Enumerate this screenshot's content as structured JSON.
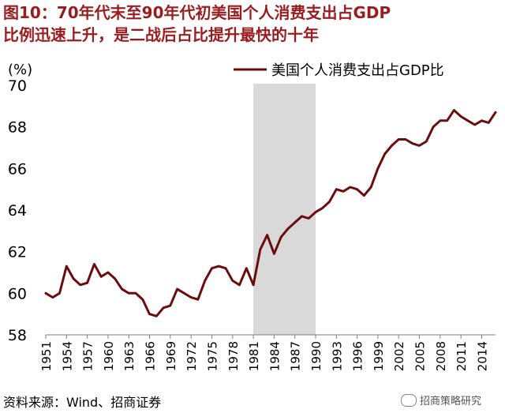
{
  "header": {
    "title_line1": "图10：70年代末至90年代初美国个人消费支出占GDP",
    "title_line2": "比例迅速上升，是二战后占比提升最快的十年"
  },
  "source": "资料来源：Wind、招商证券",
  "watermark": "招商策略研究",
  "colors": {
    "line": "#6b0d0d",
    "shade": "#d9d9d9",
    "title": "#9b1c1f"
  },
  "chart_data": {
    "type": "line",
    "title": "",
    "ylabel": "(%)",
    "xlabel": "",
    "ylim": [
      58,
      70
    ],
    "yticks": [
      58,
      60,
      62,
      64,
      66,
      68,
      70
    ],
    "xlim": [
      1951,
      2016
    ],
    "xticks": [
      1951,
      1954,
      1957,
      1960,
      1963,
      1966,
      1969,
      1972,
      1975,
      1978,
      1981,
      1984,
      1987,
      1990,
      1993,
      1996,
      1999,
      2002,
      2005,
      2008,
      2011,
      2014
    ],
    "legend": {
      "position": "top-right",
      "entries": [
        "美国个人消费支出占GDP比"
      ]
    },
    "shaded_region": [
      1981,
      1990
    ],
    "series": [
      {
        "name": "美国个人消费支出占GDP比",
        "x": [
          1951,
          1952,
          1953,
          1954,
          1955,
          1956,
          1957,
          1958,
          1959,
          1960,
          1961,
          1962,
          1963,
          1964,
          1965,
          1966,
          1967,
          1968,
          1969,
          1970,
          1971,
          1972,
          1973,
          1974,
          1975,
          1976,
          1977,
          1978,
          1979,
          1980,
          1981,
          1982,
          1983,
          1984,
          1985,
          1986,
          1987,
          1988,
          1989,
          1990,
          1991,
          1992,
          1993,
          1994,
          1995,
          1996,
          1997,
          1998,
          1999,
          2000,
          2001,
          2002,
          2003,
          2004,
          2005,
          2006,
          2007,
          2008,
          2009,
          2010,
          2011,
          2012,
          2013,
          2014,
          2015,
          2016
        ],
        "values": [
          60.0,
          59.8,
          60.0,
          61.3,
          60.7,
          60.4,
          60.5,
          61.4,
          60.8,
          61.0,
          60.7,
          60.2,
          60.0,
          60.0,
          59.7,
          59.0,
          58.9,
          59.3,
          59.4,
          60.2,
          60.0,
          59.8,
          59.7,
          60.6,
          61.2,
          61.3,
          61.2,
          60.6,
          60.4,
          61.2,
          60.4,
          62.1,
          62.8,
          61.9,
          62.7,
          63.1,
          63.4,
          63.7,
          63.6,
          63.9,
          64.1,
          64.4,
          65.0,
          64.9,
          65.1,
          65.0,
          64.7,
          65.1,
          66.0,
          66.7,
          67.1,
          67.4,
          67.4,
          67.2,
          67.1,
          67.3,
          68.0,
          68.3,
          68.3,
          68.8,
          68.5,
          68.3,
          68.1,
          68.3,
          68.2,
          68.7
        ]
      }
    ]
  }
}
